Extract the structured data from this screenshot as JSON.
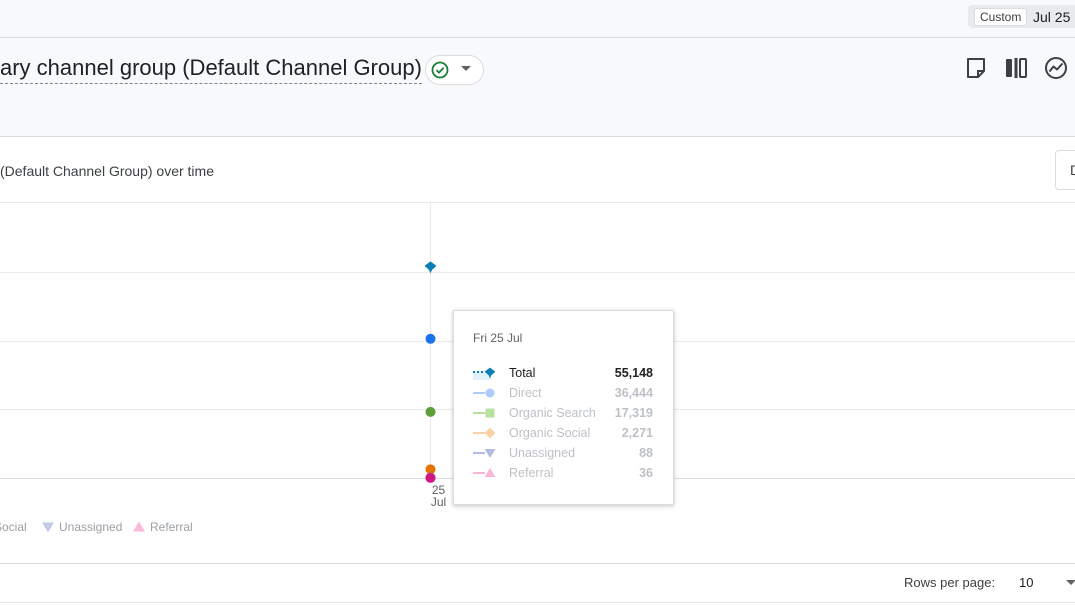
{
  "date_range": {
    "preset": "Custom",
    "value": "Jul 25"
  },
  "report": {
    "title": "ary channel group (Default Channel Group)"
  },
  "card": {
    "title": "(Default Channel Group) over time",
    "button_label": "D"
  },
  "chart_data": {
    "type": "line",
    "x": [
      "25 Jul"
    ],
    "x_tick_labels": [
      [
        "25",
        "Jul"
      ]
    ],
    "series": [
      {
        "name": "Total",
        "values": [
          55148
        ],
        "color": "#0b7fb4",
        "marker": "pin"
      },
      {
        "name": "Direct",
        "values": [
          36444
        ],
        "color": "#1a73e8",
        "marker": "circle"
      },
      {
        "name": "Organic Search",
        "values": [
          17319
        ],
        "color": "#5f9f3b",
        "marker": "square"
      },
      {
        "name": "Organic Social",
        "values": [
          2271
        ],
        "color": "#e37400",
        "marker": "diamond"
      },
      {
        "name": "Unassigned",
        "values": [
          88
        ],
        "color": "#7986cb",
        "marker": "triangle-down"
      },
      {
        "name": "Referral",
        "values": [
          36
        ],
        "color": "#d01884",
        "marker": "triangle-up"
      }
    ],
    "ylim": [
      0,
      72000
    ],
    "y_gridlines": [
      0,
      18000,
      36000,
      54000,
      72000
    ],
    "grid": true,
    "legend_placement": "bottom",
    "legend_visible": [
      {
        "name": "Social",
        "marker": "diamond",
        "color": "#f5c98f"
      },
      {
        "name": "Unassigned",
        "marker": "triangle-down",
        "color": "#c5cae9"
      },
      {
        "name": "Referral",
        "marker": "triangle-up",
        "color": "#f8bbd9"
      }
    ],
    "tooltip": {
      "date": "Fri 25 Jul",
      "rows": [
        {
          "name": "Total",
          "value": "55,148",
          "active": true
        },
        {
          "name": "Direct",
          "value": "36,444",
          "active": false
        },
        {
          "name": "Organic Search",
          "value": "17,319",
          "active": false
        },
        {
          "name": "Organic Social",
          "value": "2,271",
          "active": false
        },
        {
          "name": "Unassigned",
          "value": "88",
          "active": false
        },
        {
          "name": "Referral",
          "value": "36",
          "active": false
        }
      ]
    }
  },
  "footer": {
    "rows_per_page_label": "Rows per page:",
    "rows_per_page_value": "10"
  },
  "icons": [
    "check-circle-icon",
    "caret-down-icon",
    "note-icon",
    "compare-icon",
    "insights-icon"
  ]
}
